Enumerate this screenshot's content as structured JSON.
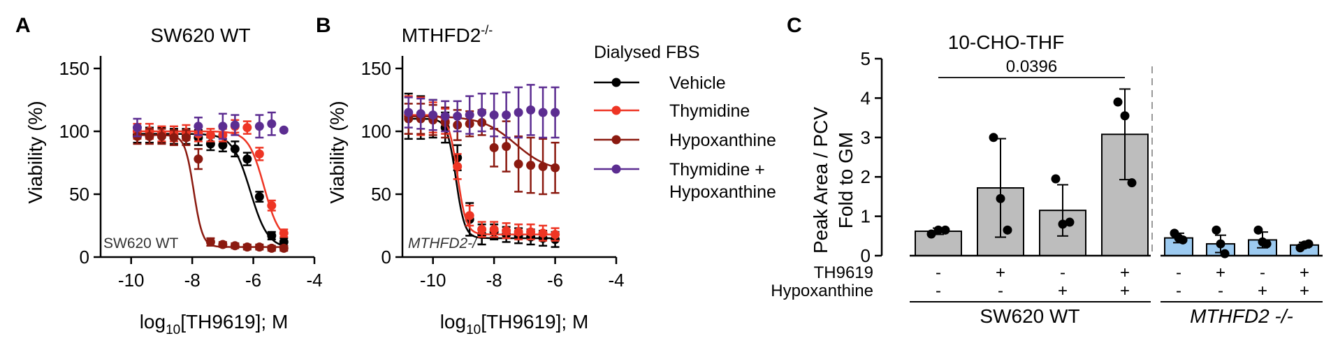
{
  "colors": {
    "Vehicle": "#000000",
    "Thymidine": "#ee3524",
    "Hypoxanthine": "#8b1a10",
    "Thymidine + Hypoxanthine": "#5c2d91",
    "bar_wt": "#bdbdbd",
    "bar_ko": "#9ccaf0"
  },
  "legend": {
    "title": "Dialysed FBS",
    "entries": [
      {
        "label": "Vehicle",
        "color_key": "Vehicle"
      },
      {
        "label": "Thymidine",
        "color_key": "Thymidine"
      },
      {
        "label": "Hypoxanthine",
        "color_key": "Hypoxanthine"
      },
      {
        "label": "Thymidine +",
        "label2": "Hypoxanthine",
        "color_key": "Thymidine + Hypoxanthine"
      }
    ]
  },
  "chart_data": [
    {
      "panel": "A",
      "type": "scatter",
      "title": "SW620 WT",
      "inset_label": "SW620 WT",
      "xlabel_pre": "log",
      "xlabel_sub": "10",
      "xlabel_post": "[TH9619]; M",
      "ylabel": "Viability (%)",
      "xlim": [
        -11,
        -4
      ],
      "ylim": [
        0,
        160
      ],
      "xticks": [
        -10,
        -8,
        -6,
        -4
      ],
      "yticks": [
        0,
        50,
        100,
        150
      ],
      "series": [
        {
          "name": "Vehicle",
          "ic50": -6.1,
          "top": 98,
          "bottom": 7,
          "hill": 1.5,
          "x": [
            -9.8,
            -9.4,
            -9.0,
            -8.6,
            -8.2,
            -7.8,
            -7.4,
            -7.0,
            -6.6,
            -6.2,
            -5.8,
            -5.4,
            -5.0
          ],
          "y": [
            97,
            97,
            97,
            96,
            96,
            95,
            90,
            89,
            86,
            78,
            48,
            17,
            12
          ],
          "err": [
            6,
            6,
            6,
            6,
            6,
            6,
            5,
            5,
            6,
            5,
            4,
            3,
            3
          ]
        },
        {
          "name": "Thymidine",
          "ic50": -5.65,
          "top": 100,
          "bottom": 12,
          "hill": 1.7,
          "x": [
            -9.8,
            -9.4,
            -9.0,
            -8.6,
            -8.2,
            -7.8,
            -7.4,
            -7.0,
            -6.6,
            -6.2,
            -5.8,
            -5.4,
            -5.0
          ],
          "y": [
            100,
            100,
            98,
            98,
            99,
            98,
            97,
            97,
            104,
            103,
            82,
            41,
            19
          ],
          "err": [
            6,
            6,
            6,
            6,
            6,
            6,
            5,
            5,
            5,
            5,
            5,
            4,
            3
          ]
        },
        {
          "name": "Hypoxanthine",
          "ic50": -7.95,
          "top": 97,
          "bottom": 8,
          "hill": 3,
          "x": [
            -9.8,
            -9.4,
            -9.0,
            -8.6,
            -8.2,
            -7.8,
            -7.4,
            -7.0,
            -6.6,
            -6.2,
            -5.8,
            -5.4,
            -5.0
          ],
          "y": [
            96,
            96,
            96,
            95,
            95,
            78,
            12,
            10,
            9,
            8,
            8,
            7,
            7
          ],
          "err": [
            6,
            6,
            6,
            6,
            6,
            8,
            3,
            2,
            2,
            2,
            2,
            2,
            2
          ]
        },
        {
          "name": "Thymidine + Hypoxanthine",
          "curve": false,
          "x": [
            -9.8,
            -7.8,
            -7.0,
            -6.6,
            -5.8,
            -5.4,
            -5.0
          ],
          "y": [
            103,
            104,
            104,
            105,
            104,
            106,
            101
          ],
          "err": [
            7,
            7,
            10,
            8,
            9,
            9,
            1
          ]
        }
      ]
    },
    {
      "panel": "B",
      "type": "scatter",
      "title": "MTHFD2",
      "title_sup": "-/-",
      "inset_label": "MTHFD2-/-",
      "xlabel_pre": "log",
      "xlabel_sub": "10",
      "xlabel_post": "[TH9619]; M",
      "ylabel": "Viability (%)",
      "xlim": [
        -11,
        -4
      ],
      "ylim": [
        0,
        160
      ],
      "xticks": [
        -10,
        -8,
        -6,
        -4
      ],
      "yticks": [
        0,
        50,
        100,
        150
      ],
      "series": [
        {
          "name": "Vehicle",
          "ic50": -9.25,
          "top": 110,
          "bottom": 15,
          "hill": 3,
          "x": [
            -10.8,
            -10.4,
            -10.0,
            -9.6,
            -9.2,
            -8.8,
            -8.4,
            -8.0,
            -7.6,
            -7.2,
            -6.8,
            -6.4,
            -6.0
          ],
          "y": [
            112,
            111,
            110,
            103,
            79,
            30,
            18,
            20,
            18,
            17,
            16,
            15,
            14
          ],
          "err": [
            18,
            17,
            15,
            12,
            10,
            13,
            8,
            6,
            6,
            6,
            6,
            6,
            6
          ]
        },
        {
          "name": "Thymidine",
          "ic50": -9.2,
          "top": 113,
          "bottom": 18,
          "hill": 3,
          "x": [
            -10.8,
            -10.4,
            -10.0,
            -9.6,
            -9.2,
            -8.8,
            -8.4,
            -8.0,
            -7.6,
            -7.2,
            -6.8,
            -6.4,
            -6.0
          ],
          "y": [
            113,
            112,
            111,
            108,
            72,
            33,
            22,
            22,
            21,
            20,
            20,
            19,
            18
          ],
          "err": [
            15,
            15,
            12,
            10,
            10,
            8,
            6,
            6,
            6,
            6,
            6,
            6,
            5
          ]
        },
        {
          "name": "Hypoxanthine",
          "ic50": -7.3,
          "top": 112,
          "bottom": 68,
          "hill": 0.8,
          "x": [
            -10.8,
            -10.4,
            -10.0,
            -9.6,
            -9.2,
            -8.8,
            -8.4,
            -8.0,
            -7.6,
            -7.2,
            -6.8,
            -6.4,
            -6.0
          ],
          "y": [
            110,
            110,
            109,
            107,
            105,
            106,
            107,
            87,
            88,
            74,
            73,
            72,
            71
          ],
          "err": [
            12,
            12,
            12,
            12,
            12,
            10,
            10,
            15,
            20,
            22,
            22,
            22,
            20
          ]
        },
        {
          "name": "Thymidine + Hypoxanthine",
          "curve": false,
          "x": [
            -10.8,
            -10.4,
            -10.0,
            -9.6,
            -9.2,
            -8.8,
            -8.4,
            -8.0,
            -7.6,
            -7.2,
            -6.8,
            -6.4,
            -6.0
          ],
          "y": [
            115,
            114,
            113,
            112,
            112,
            113,
            115,
            113,
            113,
            115,
            117,
            115,
            115
          ],
          "err": [
            12,
            12,
            12,
            12,
            12,
            15,
            15,
            17,
            18,
            20,
            20,
            20,
            20
          ]
        }
      ]
    },
    {
      "panel": "C",
      "type": "bar",
      "title": "10-CHO-THF",
      "ylabel_line1": "Peak Area / PCV",
      "ylabel_line2": "Fold to  GM",
      "ylim": [
        0,
        5
      ],
      "yticks": [
        0,
        1,
        2,
        3,
        4,
        5
      ],
      "annotation": "0.0396",
      "row_labels": [
        "TH9619",
        "Hypoxanthine"
      ],
      "conditions": {
        "TH9619": [
          "-",
          "+",
          "-",
          "+",
          "-",
          "+",
          "-",
          "+"
        ],
        "Hypoxanthine": [
          "-",
          "-",
          "+",
          "+",
          "-",
          "-",
          "+",
          "+"
        ]
      },
      "groups": [
        {
          "name": "SW620 WT",
          "italic": false,
          "color_key": "bar_wt"
        },
        {
          "name": "MTHFD2 -/-",
          "italic": true,
          "color_key": "bar_ko"
        }
      ],
      "bars": [
        {
          "group": 0,
          "value": 0.62,
          "err": 0.08,
          "points": [
            0.55,
            0.65,
            0.65
          ]
        },
        {
          "group": 0,
          "value": 1.72,
          "err": 1.25,
          "points": [
            3.0,
            1.45,
            0.65
          ]
        },
        {
          "group": 0,
          "value": 1.15,
          "err": 0.65,
          "points": [
            1.95,
            0.8,
            0.85
          ]
        },
        {
          "group": 0,
          "value": 3.08,
          "err": 1.15,
          "points": [
            3.9,
            3.55,
            1.85
          ]
        },
        {
          "group": 1,
          "value": 0.45,
          "err": 0.12,
          "points": [
            0.57,
            0.45,
            0.4
          ]
        },
        {
          "group": 1,
          "value": 0.3,
          "err": 0.22,
          "points": [
            0.65,
            0.3,
            0.05
          ]
        },
        {
          "group": 1,
          "value": 0.4,
          "err": 0.2,
          "points": [
            0.65,
            0.35,
            0.3
          ]
        },
        {
          "group": 1,
          "value": 0.27,
          "err": 0.07,
          "points": [
            0.2,
            0.27,
            0.3
          ]
        }
      ]
    }
  ]
}
